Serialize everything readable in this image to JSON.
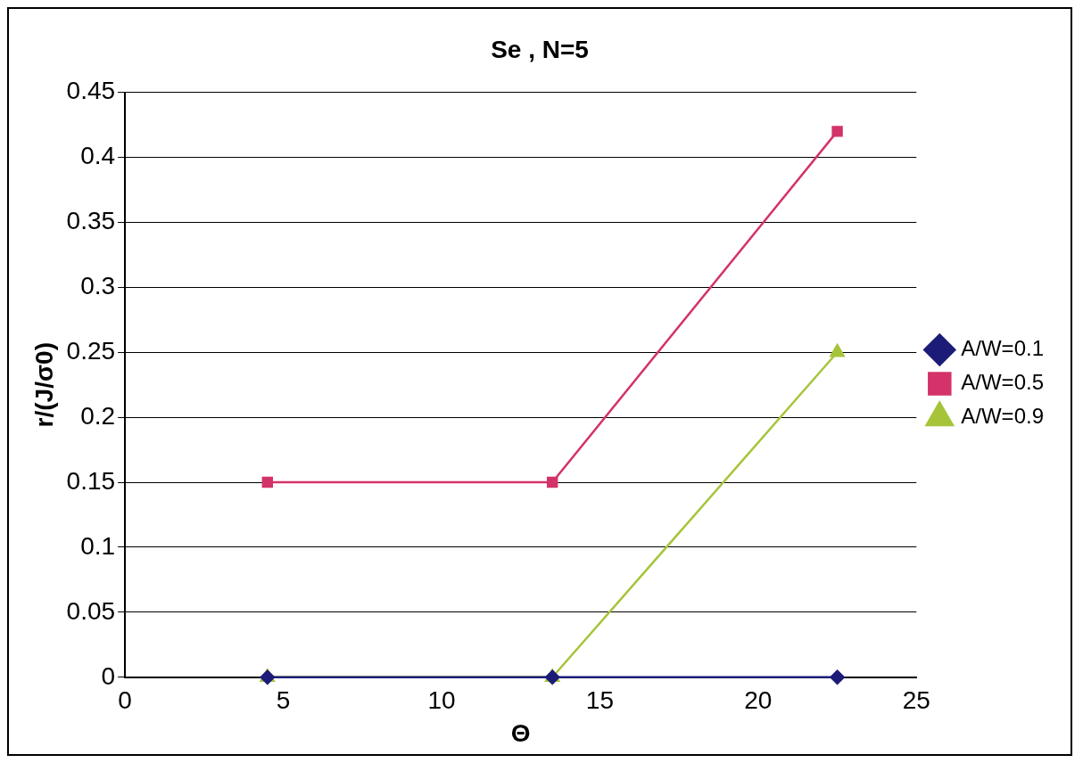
{
  "chart_data": {
    "type": "line",
    "title": "Se , N=5",
    "xlabel": "Θ",
    "ylabel": "r/(J/σ0)",
    "x": [
      4.5,
      13.5,
      22.5
    ],
    "series": [
      {
        "name": "A/W=0.1",
        "color": "#1c1c78",
        "values": [
          0,
          0,
          0
        ],
        "marker": "diamond"
      },
      {
        "name": "A/W=0.5",
        "color": "#d3336a",
        "values": [
          0.15,
          0.15,
          0.42
        ],
        "marker": "square"
      },
      {
        "name": "A/W=0.9",
        "color": "#a6c43a",
        "values": [
          0,
          0,
          0.25
        ],
        "marker": "triangle"
      }
    ],
    "xlim": [
      0,
      25
    ],
    "xticks": [
      0,
      5,
      10,
      15,
      20,
      25
    ],
    "ylim": [
      0,
      0.45
    ],
    "yticks": [
      0,
      0.05,
      0.1,
      0.15,
      0.2,
      0.25,
      0.3,
      0.35,
      0.4,
      0.45
    ],
    "grid": "y",
    "legend": "right",
    "line_style": "solid"
  }
}
